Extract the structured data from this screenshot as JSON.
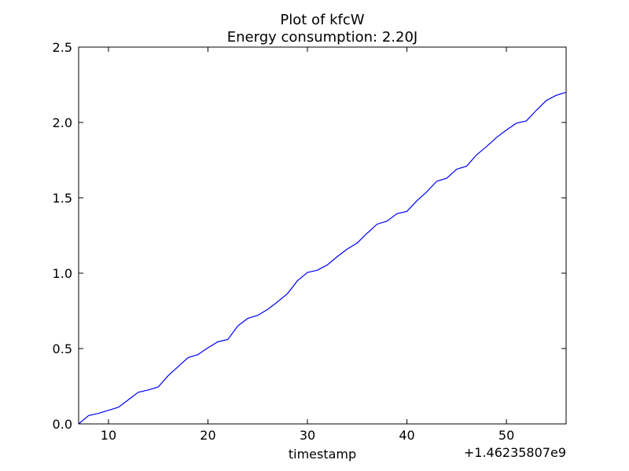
{
  "chart_data": {
    "type": "line",
    "title": "Plot of kfcW",
    "subtitle": "Energy consumption: 2.20J",
    "xlabel": "timestamp",
    "ylabel": "",
    "x_offset_label": "+1.46235807e9",
    "xlim": [
      7,
      56
    ],
    "ylim": [
      0.0,
      2.5
    ],
    "xticks": [
      10,
      20,
      30,
      40,
      50
    ],
    "xtick_labels": [
      "10",
      "20",
      "30",
      "40",
      "50"
    ],
    "yticks": [
      0.0,
      0.5,
      1.0,
      1.5,
      2.0,
      2.5
    ],
    "ytick_labels": [
      "0.0",
      "0.5",
      "1.0",
      "1.5",
      "2.0",
      "2.5"
    ],
    "grid": false,
    "series": [
      {
        "color": "#0000ff",
        "x": [
          7,
          8,
          9,
          10,
          11,
          12,
          13,
          14,
          15,
          16,
          17,
          18,
          19,
          20,
          21,
          22,
          23,
          24,
          25,
          26,
          27,
          28,
          29,
          30,
          31,
          32,
          33,
          34,
          35,
          36,
          37,
          38,
          39,
          40,
          41,
          42,
          43,
          44,
          45,
          46,
          47,
          48,
          49,
          50,
          51,
          52,
          53,
          54,
          55,
          56
        ],
        "y": [
          0.0,
          0.055,
          0.07,
          0.09,
          0.11,
          0.16,
          0.21,
          0.225,
          0.245,
          0.32,
          0.38,
          0.44,
          0.46,
          0.505,
          0.545,
          0.56,
          0.65,
          0.7,
          0.72,
          0.76,
          0.81,
          0.865,
          0.95,
          1.005,
          1.02,
          1.055,
          1.11,
          1.16,
          1.2,
          1.265,
          1.325,
          1.345,
          1.395,
          1.41,
          1.48,
          1.54,
          1.61,
          1.63,
          1.69,
          1.71,
          1.785,
          1.84,
          1.9,
          1.95,
          1.995,
          2.01,
          2.08,
          2.145,
          2.18,
          2.2
        ]
      }
    ]
  }
}
